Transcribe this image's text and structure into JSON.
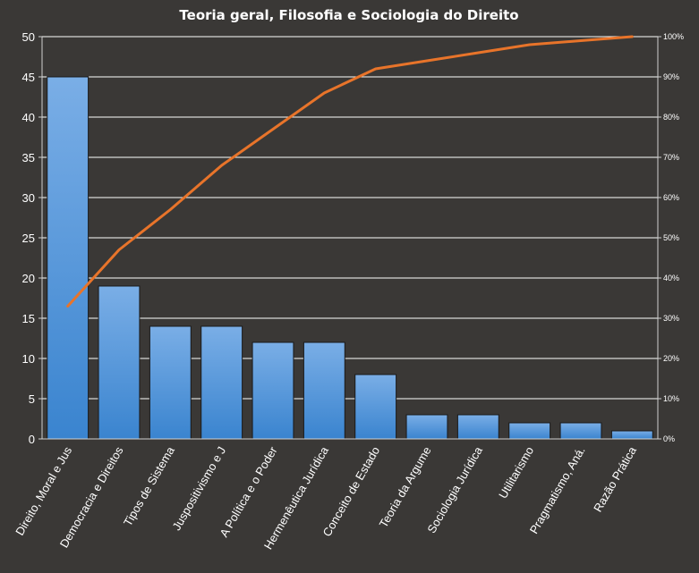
{
  "chart_data": {
    "type": "bar",
    "title": "Teoria geral, Filosofia  e Sociologia do Direito",
    "categories": [
      "Direito, Moral e Jus",
      "Democracia e Direitos",
      "Tipos de Sistema",
      "Juspositivismo e J",
      "A Política e o Poder",
      "Hermenêutica Jurídica",
      "Conceito de Estado",
      "Teoria da Argume",
      "Sociologia Jurídica",
      "Utilitarismo",
      "Pragmatismo, Aná.",
      "Razão Prática"
    ],
    "series": [
      {
        "type": "bar",
        "values": [
          45,
          19,
          14,
          14,
          12,
          12,
          8,
          3,
          3,
          2,
          2,
          1
        ]
      },
      {
        "type": "line",
        "axis": "right",
        "values": [
          33,
          47,
          57,
          68,
          77,
          86,
          92,
          94,
          96,
          98,
          99,
          100
        ]
      }
    ],
    "ylim": [
      0,
      50
    ],
    "yticks": [
      "0",
      "5",
      "10",
      "15",
      "20",
      "25",
      "30",
      "35",
      "40",
      "45",
      "50"
    ],
    "y2lim": [
      0,
      100
    ],
    "y2ticks": [
      "0%",
      "10%",
      "20%",
      "30%",
      "40%",
      "50%",
      "60%",
      "70%",
      "80%",
      "90%",
      "100%"
    ],
    "grid": true,
    "legend": "none",
    "colors": {
      "background": "#3a3836",
      "bar_top": "#7aaee6",
      "bar_bottom": "#3a84cf",
      "line": "#e8742a",
      "grid": "#ffffff",
      "text": "#ffffff"
    }
  }
}
